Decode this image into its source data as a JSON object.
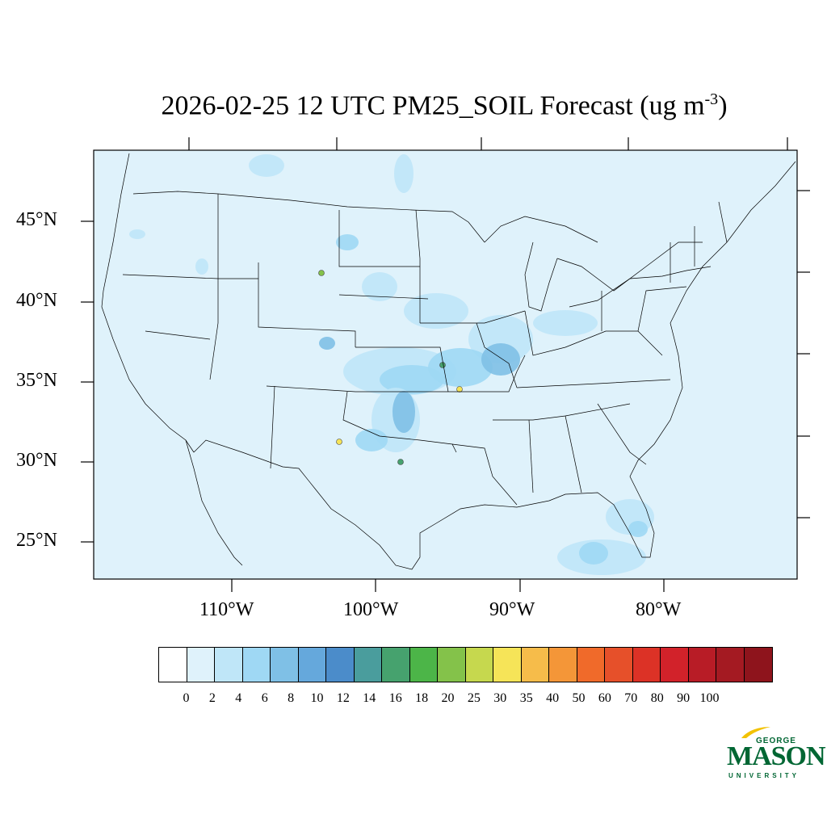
{
  "title": {
    "main": "2026-02-25 12 UTC PM25_SOIL Forecast (ug m",
    "exponent": "-3",
    "close": ")"
  },
  "latitude_labels": [
    "45°N",
    "40°N",
    "35°N",
    "30°N",
    "25°N"
  ],
  "longitude_labels": [
    "110°W",
    "100°W",
    "90°W",
    "80°W"
  ],
  "colorbar": {
    "labels": [
      "0",
      "2",
      "4",
      "6",
      "8",
      "10",
      "12",
      "14",
      "16",
      "18",
      "20",
      "25",
      "30",
      "35",
      "40",
      "50",
      "60",
      "70",
      "80",
      "90",
      "100"
    ],
    "colors": [
      "#ffffff",
      "#dff2fb",
      "#bfe6f8",
      "#9fd8f4",
      "#7fc0e6",
      "#65a8dc",
      "#4b8cca",
      "#4a9d9d",
      "#46a26e",
      "#4cb548",
      "#84c24a",
      "#c6d84e",
      "#f6e458",
      "#f6bc4a",
      "#f49638",
      "#f06a2a",
      "#e6502a",
      "#dc3226",
      "#d2222a",
      "#b81c26",
      "#a41a22",
      "#8e141c"
    ]
  },
  "map": {
    "background_color": "#dff2fb",
    "field_colors": {
      "light": "#bfe6f8",
      "medium": "#9fd8f4",
      "strong": "#7fc0e6",
      "deep": "#65a8dc"
    }
  },
  "logo": {
    "top": "GEORGE",
    "middle": "MASON",
    "bottom": "UNIVERSITY",
    "color": "#006633",
    "accent": "#f2c200"
  }
}
